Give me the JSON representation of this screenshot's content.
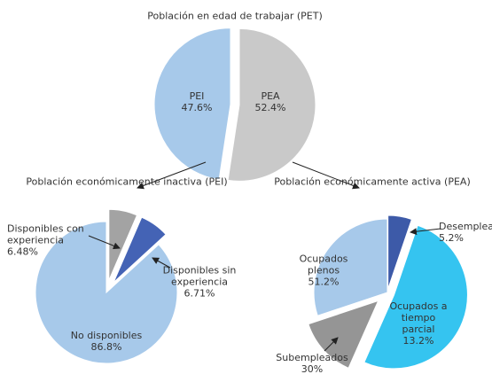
{
  "chart_data": [
    {
      "type": "pie",
      "title": "Población en edad de trabajar (PET)",
      "categories": [
        "PEA",
        "PEI"
      ],
      "values": [
        52.4,
        47.6
      ],
      "value_labels": [
        "52.4%",
        "47.6%"
      ],
      "colors": [
        "#c9c9c9",
        "#a7c9ea"
      ]
    },
    {
      "type": "pie",
      "title": "Población económicamente inactiva (PEI)",
      "categories": [
        "Disponibles con experiencia",
        "Disponibles sin experiencia",
        "No disponibles"
      ],
      "values": [
        6.48,
        6.71,
        86.8
      ],
      "value_labels": [
        "6.48%",
        "6.71%",
        "86.8%"
      ],
      "colors": [
        "#a3a3a3",
        "#4463b5",
        "#a7c9ea"
      ]
    },
    {
      "type": "pie",
      "title": "Población económicamente activa (PEA)",
      "categories": [
        "Desempleados",
        "Ocupados plenos",
        "Ocupados a tiempo parcial",
        "Subempleados"
      ],
      "values": [
        5.2,
        51.2,
        13.2,
        30
      ],
      "value_labels": [
        "5.2%",
        "51.2%",
        "13.2%",
        "30%"
      ],
      "colors": [
        "#3d5aa8",
        "#35c4f0",
        "#959595",
        "#a7c9ea"
      ]
    }
  ]
}
